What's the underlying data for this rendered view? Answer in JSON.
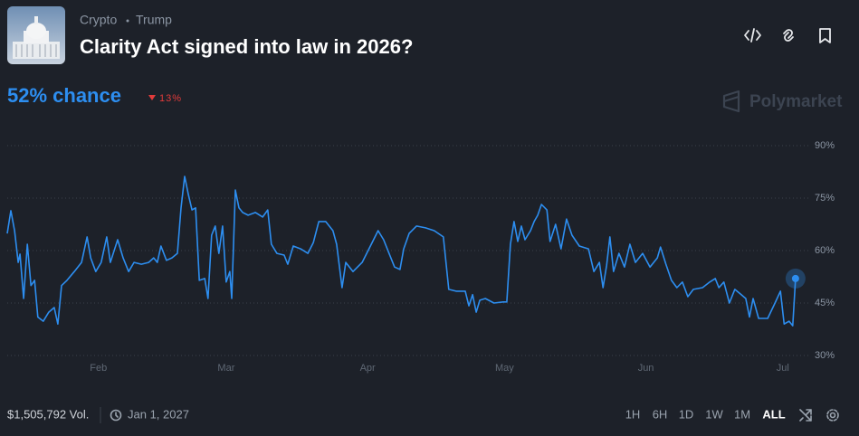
{
  "header": {
    "category": "Crypto",
    "tag": "Trump",
    "title": "Clarity Act signed into law in 2026?",
    "chance": "52% chance",
    "change": "13%",
    "brand": "Polymarket"
  },
  "chart_data": {
    "type": "line",
    "x": [
      10,
      10.8,
      11.6,
      12.4,
      12.8,
      13.6,
      14.4,
      15.2,
      16,
      16.7,
      17.9,
      19.1,
      20.3,
      21.1,
      21.9,
      23.1,
      24.7,
      26.3,
      27.5,
      28.3,
      29.4,
      30.6,
      31.8,
      32.6,
      34.2,
      35.4,
      36.6,
      37.8,
      39.4,
      41,
      42.1,
      42.9,
      43.7,
      44.9,
      46.1,
      47.3,
      48.1,
      48.9,
      49.7,
      50.5,
      51.3,
      52.1,
      53.3,
      54,
      54.8,
      55.6,
      56.4,
      57.2,
      58,
      58.8,
      59.2,
      60,
      60.8,
      61.6,
      62.8,
      64.4,
      66,
      67.1,
      67.9,
      69.1,
      70.7,
      71.5,
      72.7,
      74.3,
      75.9,
      77.1,
      78.3,
      79.8,
      81.4,
      82.2,
      83.4,
      84.2,
      85.8,
      87.8,
      89.8,
      91.3,
      92.5,
      93.7,
      94.9,
      96.1,
      96.9,
      98.1,
      99.7,
      101.7,
      103.6,
      105.6,
      106.8,
      108.4,
      110.4,
      111.2,
      112,
      112.8,
      113.6,
      114.8,
      116.7,
      118.7,
      119.5,
      120.3,
      121.1,
      121.9,
      122.7,
      123.5,
      124.7,
      125.5,
      126.3,
      127.1,
      128.3,
      129,
      130.2,
      131.4,
      132.6,
      133.8,
      135.4,
      137.4,
      138.6,
      139.8,
      140.6,
      141.4,
      142.1,
      142.9,
      144.1,
      145.3,
      146.5,
      147.7,
      149.3,
      150.9,
      152.5,
      153.2,
      154.4,
      155.6,
      156.8,
      158,
      159.2,
      160.4,
      162.4,
      164,
      165.2,
      166,
      167.1,
      168.3,
      169.5,
      170.7,
      171.9,
      172.7,
      173.5,
      174.7,
      176.7,
      178.3,
      179.5,
      180.3,
      181.4,
      182.2,
      182.8
    ],
    "series": [
      {
        "color": "#2d8ef0",
        "values": [
          64.9,
          71.4,
          65.7,
          56.6,
          59,
          46.3,
          61.8,
          50,
          51.5,
          41,
          39.8,
          42.4,
          43.7,
          39,
          50,
          51.5,
          54,
          56.6,
          63.9,
          57.9,
          54,
          56.6,
          63.9,
          56.6,
          63.1,
          57.9,
          54,
          56.6,
          56.1,
          56.6,
          57.9,
          56.6,
          61.3,
          57.2,
          57.9,
          59.2,
          72.2,
          81.2,
          76,
          71.6,
          72.2,
          51.5,
          52,
          46.3,
          64.4,
          67,
          59.2,
          67,
          51,
          54,
          46.3,
          77.3,
          72.2,
          70.9,
          70.1,
          70.9,
          69.6,
          71.6,
          61.8,
          59.2,
          58.7,
          56.1,
          61.3,
          60.5,
          59.2,
          62.3,
          68.3,
          68.3,
          65.7,
          61.8,
          49.4,
          56.6,
          54,
          56.6,
          61.8,
          65.7,
          63.1,
          59.2,
          55.3,
          54.6,
          60.5,
          64.9,
          67,
          66.5,
          65.7,
          63.9,
          48.9,
          48.4,
          48.4,
          44.2,
          47.4,
          42.4,
          45.8,
          46.3,
          45,
          45.3,
          45.3,
          61.8,
          68.3,
          62.6,
          67,
          63.1,
          65.7,
          68.3,
          70.1,
          73.2,
          71.6,
          62.6,
          67.5,
          60.5,
          69,
          64.4,
          61.3,
          60.5,
          54,
          56.6,
          49.4,
          55.8,
          63.9,
          54,
          59.2,
          55.3,
          61.8,
          56.6,
          59.2,
          55.3,
          57.9,
          61,
          56.1,
          51.5,
          49.4,
          51,
          46.8,
          48.9,
          49.4,
          51,
          52,
          49.4,
          51,
          45,
          48.9,
          47.6,
          46.3,
          41,
          46.3,
          40.6,
          40.6,
          45,
          48.4,
          39,
          39.8,
          38.5,
          52
        ]
      }
    ],
    "xlim": [
      10,
      186
    ],
    "xticks": [
      {
        "value": 30,
        "label": "Feb"
      },
      {
        "value": 58,
        "label": "Mar"
      },
      {
        "value": 89,
        "label": "Apr"
      },
      {
        "value": 119,
        "label": "May"
      },
      {
        "value": 150,
        "label": "Jun"
      },
      {
        "value": 180,
        "label": "Jul"
      }
    ],
    "ylim": [
      30,
      90
    ],
    "yticks": [
      {
        "value": 90,
        "label": "90%"
      },
      {
        "value": 75,
        "label": "75%"
      },
      {
        "value": 60,
        "label": "60%"
      },
      {
        "value": 45,
        "label": "45%"
      },
      {
        "value": 30,
        "label": "30%"
      }
    ],
    "grid": true
  },
  "footer": {
    "volume": "$1,505,792 Vol.",
    "end_date": "Jan 1, 2027",
    "ranges": [
      "1H",
      "6H",
      "1D",
      "1W",
      "1M",
      "ALL"
    ],
    "active_range": "ALL"
  }
}
